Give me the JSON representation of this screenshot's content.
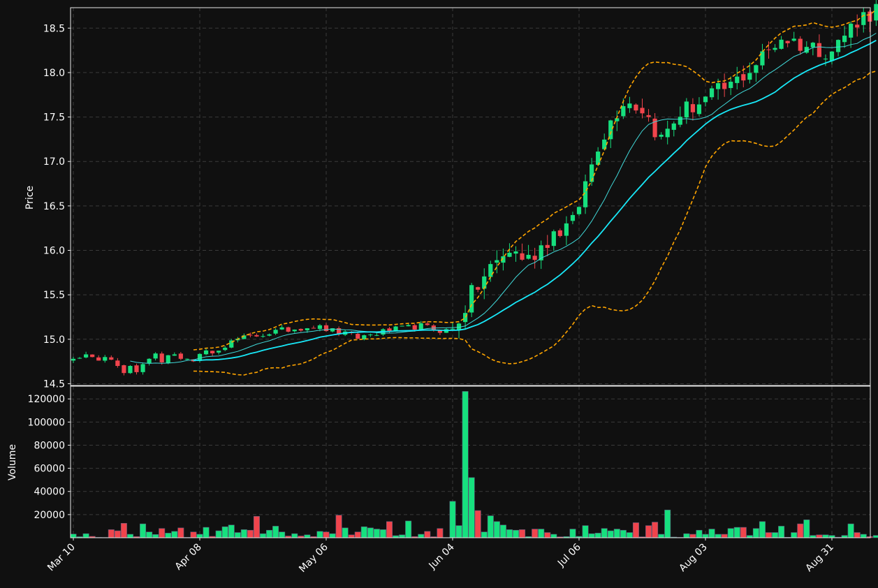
{
  "chart_data": [
    {
      "type": "candlestick",
      "ylabel": "Price",
      "ylim": [
        14.48,
        18.73
      ],
      "yticks": [
        "14.5",
        "15.0",
        "15.5",
        "16.0",
        "16.5",
        "17.0",
        "17.5",
        "18.0",
        "18.5"
      ],
      "ytick_values": [
        14.5,
        15.0,
        15.5,
        16.0,
        16.5,
        17.0,
        17.5,
        18.0,
        18.5
      ],
      "xticks": [
        "Mar 10",
        "Apr 08",
        "May 06",
        "Jun 04",
        "Jul 06",
        "Aug 03",
        "Aug 31"
      ],
      "xtick_index": [
        0,
        20,
        40,
        60,
        80,
        100,
        120
      ],
      "grid": true,
      "colors": {
        "up": "#16e07e",
        "down": "#f0444c",
        "ma_fast": "#40d8d8",
        "ma_slow": "#18e8f8",
        "bands": "#ffa500",
        "bg": "#101010"
      },
      "overlays": [
        "moving average (fast)",
        "moving average (slow)",
        "upper band",
        "lower band"
      ],
      "start_tail": [
        14.78,
        14.79,
        14.83,
        14.8,
        14.76,
        14.8,
        14.77,
        14.7,
        14.62,
        14.7,
        14.63,
        14.72,
        14.78,
        14.84,
        14.74,
        14.82,
        14.83,
        14.78,
        14.78
      ],
      "anchors": [
        [
          19,
          14.78
        ],
        [
          26,
          15.0
        ],
        [
          33,
          15.1
        ],
        [
          38,
          15.15
        ],
        [
          45,
          15.02
        ],
        [
          50,
          15.1
        ],
        [
          55,
          15.15
        ],
        [
          58,
          15.1
        ],
        [
          60,
          15.1
        ],
        [
          63,
          15.5
        ],
        [
          66,
          15.8
        ],
        [
          69,
          16.0
        ],
        [
          72,
          15.9
        ],
        [
          76,
          16.2
        ],
        [
          79,
          16.3
        ],
        [
          83,
          17.2
        ],
        [
          87,
          17.7
        ],
        [
          90,
          17.6
        ],
        [
          93,
          17.25
        ],
        [
          96,
          17.55
        ],
        [
          100,
          17.7
        ],
        [
          104,
          17.85
        ],
        [
          108,
          18.1
        ],
        [
          112,
          18.4
        ],
        [
          116,
          18.3
        ],
        [
          120,
          18.25
        ],
        [
          124,
          18.6
        ]
      ]
    },
    {
      "type": "bar",
      "ylabel": "Volume",
      "ylim": [
        0,
        131000
      ],
      "yticks": [
        "20000",
        "40000",
        "60000",
        "80000",
        "100000",
        "120000"
      ],
      "ytick_values": [
        20000,
        40000,
        60000,
        80000,
        100000,
        120000
      ],
      "values": [
        3200,
        900,
        3500,
        1200,
        300,
        200,
        7000,
        6000,
        12500,
        3000,
        1000,
        12000,
        5000,
        2800,
        8000,
        4000,
        5500,
        8500,
        300,
        5000,
        3000,
        9000,
        1200,
        6000,
        9500,
        11000,
        4500,
        7000,
        6500,
        18500,
        3500,
        6500,
        10000,
        5000,
        1500,
        3500,
        1500,
        2500,
        1000,
        5500,
        5000,
        3500,
        19500,
        8500,
        2500,
        5000,
        9500,
        8500,
        7500,
        7000,
        14000,
        1800,
        2500,
        14500,
        1000,
        3000,
        5500,
        900,
        8000,
        200,
        31500,
        10500,
        126500,
        52000,
        23500,
        5000,
        19000,
        14000,
        11000,
        7000,
        6500,
        7000,
        1000,
        7500,
        7500,
        4500,
        3000,
        800,
        1000,
        7500,
        1200,
        10500,
        3500,
        4000,
        8000,
        6000,
        7500,
        6500,
        4500,
        13000,
        800,
        10500,
        13500,
        3000,
        24000,
        600,
        300,
        3500,
        3000,
        6500,
        3000,
        7500,
        3000,
        3000,
        8000,
        9000,
        9000,
        2000,
        8000,
        14000,
        4500,
        4500,
        10000,
        400,
        4500,
        12000,
        15500,
        2000,
        2500,
        2500,
        2000,
        500,
        2000,
        12000,
        4500,
        3000,
        1000,
        2000
      ]
    }
  ]
}
